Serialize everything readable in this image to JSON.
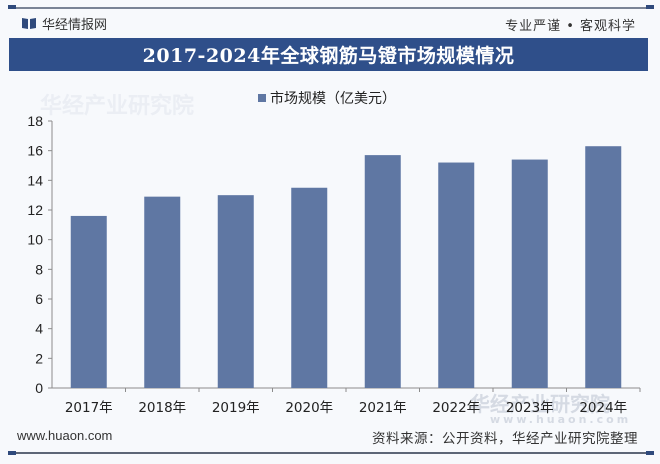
{
  "header": {
    "brand": "华经情报网",
    "slogan": "专业严谨 • 客观科学",
    "brand_icon": "book-icon"
  },
  "footer": {
    "url": "www.huaon.com",
    "source": "资料来源：公开资料，华经产业研究院整理"
  },
  "watermark": {
    "text": "华经产业研究院",
    "url": "www.huaon.com"
  },
  "colors": {
    "title_bar": "#2f4f8a",
    "bar": "#5f77a3"
  },
  "chart_data": {
    "type": "bar",
    "title": "2017-2024年全球钢筋马镫市场规模情况",
    "xlabel": "",
    "ylabel": "",
    "categories": [
      "2017年",
      "2018年",
      "2019年",
      "2020年",
      "2021年",
      "2022年",
      "2023年",
      "2024年"
    ],
    "series": [
      {
        "name": "市场规模（亿美元）",
        "values": [
          11.6,
          12.9,
          13.0,
          13.5,
          15.7,
          15.2,
          15.4,
          16.3
        ]
      }
    ],
    "ylim": [
      0,
      18
    ],
    "yticks": [
      0,
      2,
      4,
      6,
      8,
      10,
      12,
      14,
      16,
      18
    ],
    "grid": false,
    "legend": "top-center"
  }
}
